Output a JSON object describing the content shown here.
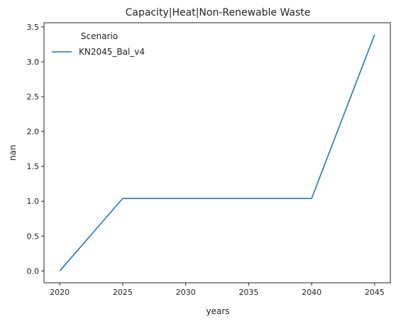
{
  "chart_data": {
    "type": "line",
    "title": "Capacity|Heat|Non-Renewable Waste",
    "xlabel": "years",
    "ylabel": "nan",
    "x": [
      2020,
      2025,
      2040,
      2045
    ],
    "xticks": [
      "2020",
      "2025",
      "2030",
      "2035",
      "2040",
      "2045"
    ],
    "yticks": [
      "0.0",
      "0.5",
      "1.0",
      "1.5",
      "2.0",
      "2.5",
      "3.0",
      "3.5"
    ],
    "xlim": [
      2018.75,
      2046.25
    ],
    "ylim": [
      -0.17,
      3.56
    ],
    "grid": false,
    "legend": {
      "title": "Scenario",
      "placement": "top-left"
    },
    "series": [
      {
        "name": "KN2045_Bal_v4",
        "color": "#1f77b4",
        "values": [
          0.0,
          1.04,
          1.04,
          3.39
        ]
      }
    ]
  }
}
